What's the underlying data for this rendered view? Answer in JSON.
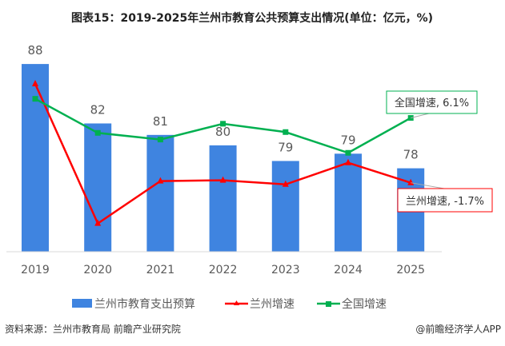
{
  "title": "图表15：2019-2025年兰州市教育公共预算支出情况(单位：亿元，%)",
  "source": "资料来源：兰州市教育局 前瞻产业研究院",
  "credit": "@前瞻经济学人APP",
  "colors": {
    "bar": "#3f84e0",
    "lanzhou": "#ff0000",
    "national": "#00b050",
    "text": "#595959"
  },
  "chart_data": {
    "type": "bar+line",
    "categories": [
      "2019",
      "2020",
      "2021",
      "2022",
      "2023",
      "2024",
      "2025"
    ],
    "series": [
      {
        "name": "兰州市教育支出预算",
        "type": "bar",
        "axis": "left",
        "values": [
          88.0,
          82.3,
          81.2,
          80.2,
          78.7,
          79.4,
          78.0
        ],
        "labels": [
          "88",
          "82",
          "81",
          "80",
          "79",
          "79",
          "78"
        ]
      },
      {
        "name": "兰州增速",
        "type": "line",
        "axis": "right",
        "marker": "triangle",
        "values": [
          10.2,
          -6.6,
          -1.5,
          -1.4,
          -1.9,
          0.7,
          -1.7
        ]
      },
      {
        "name": "全国增速",
        "type": "line",
        "axis": "right",
        "marker": "square",
        "values": [
          8.4,
          4.3,
          3.5,
          5.4,
          4.4,
          1.9,
          6.1
        ]
      }
    ],
    "annotations": [
      {
        "series": "全国增速",
        "category": "2025",
        "text": "全国增速, 6.1%"
      },
      {
        "series": "兰州增速",
        "category": "2025",
        "text": "兰州增速, -1.7%"
      }
    ],
    "ylim": [
      70,
      90
    ],
    "y2lim": [
      -10,
      15.1
    ],
    "grid": false,
    "legend": "bottom"
  }
}
